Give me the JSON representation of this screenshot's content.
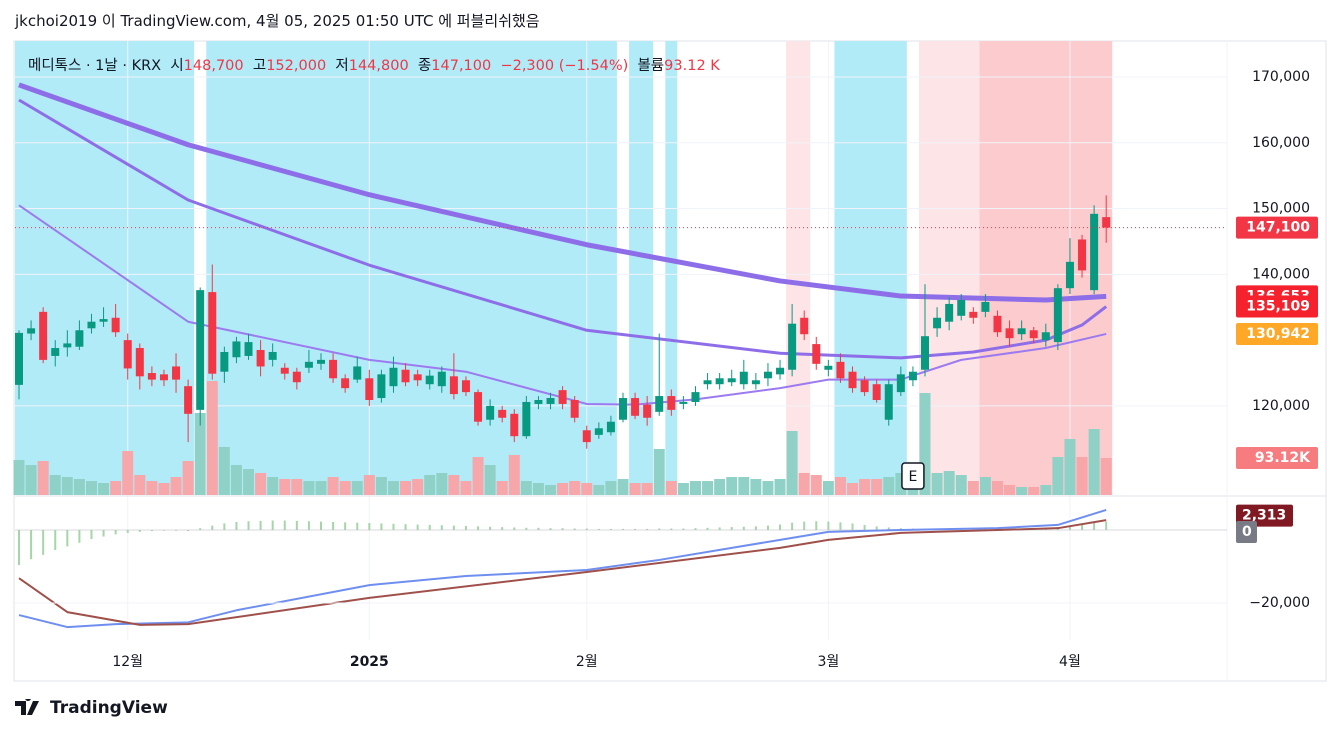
{
  "header": "jkchoi2019 이 TradingView.com, 4월 05, 2025 01:50 UTC 에 퍼블리쉬했음",
  "footer": "TradingView",
  "legend": {
    "symbol": "메디톡스 · 1날 · KRX",
    "open_label": "시",
    "open": "148,700",
    "high_label": "고",
    "high": "152,000",
    "low_label": "저",
    "low": "144,800",
    "close_label": "종",
    "close": "147,100",
    "change": "−2,300 (−1.54%)",
    "volume_label": "볼륨",
    "volume": "93.12 K"
  },
  "chart_data": {
    "type": "candlestick",
    "categories": [
      null,
      null,
      null,
      null,
      null,
      null,
      null,
      null,
      null,
      "12월",
      null,
      null,
      null,
      null,
      null,
      null,
      null,
      null,
      null,
      null,
      null,
      null,
      null,
      null,
      null,
      null,
      null,
      null,
      null,
      "2025",
      null,
      null,
      null,
      null,
      null,
      null,
      null,
      null,
      null,
      null,
      null,
      null,
      null,
      null,
      null,
      null,
      null,
      "2월",
      null,
      null,
      null,
      null,
      null,
      null,
      null,
      null,
      null,
      null,
      null,
      null,
      null,
      null,
      null,
      null,
      null,
      null,
      null,
      "3월",
      null,
      null,
      null,
      null,
      null,
      null,
      null,
      null,
      null,
      null,
      null,
      null,
      null,
      null,
      null,
      null,
      null,
      null,
      null,
      "4월",
      null,
      null,
      null
    ],
    "open": [
      123200,
      131000,
      134300,
      127600,
      128900,
      129000,
      131800,
      132800,
      133400,
      130000,
      128800,
      125000,
      124800,
      126000,
      123000,
      119400,
      137300,
      125200,
      127400,
      127600,
      128500,
      127000,
      125800,
      125200,
      125800,
      126400,
      127000,
      124200,
      124000,
      124200,
      121200,
      123000,
      125500,
      124800,
      123300,
      123000,
      124500,
      123900,
      122100,
      117900,
      119400,
      118800,
      115400,
      120300,
      120300,
      122400,
      120900,
      116300,
      115600,
      116000,
      117900,
      121200,
      120200,
      119100,
      121500,
      120300,
      120600,
      123300,
      123300,
      123600,
      123300,
      123300,
      124200,
      124800,
      125500,
      133400,
      129400,
      125500,
      126700,
      125200,
      123900,
      123300,
      117900,
      122100,
      123900,
      125500,
      131800,
      132800,
      133700,
      134300,
      134300,
      133700,
      131800,
      130900,
      131500,
      130000,
      129700,
      137900,
      145300,
      137600,
      148700
    ],
    "high": [
      131500,
      133000,
      135000,
      130000,
      131500,
      133000,
      134000,
      135000,
      135500,
      131000,
      129500,
      126000,
      125500,
      128000,
      124000,
      138000,
      141500,
      129000,
      130500,
      131000,
      130000,
      129500,
      126500,
      125800,
      128500,
      128000,
      128000,
      124800,
      127500,
      125500,
      125500,
      127500,
      126500,
      125500,
      125500,
      126000,
      128000,
      124500,
      122500,
      121000,
      120000,
      119500,
      121500,
      121500,
      122000,
      123000,
      121500,
      117000,
      117500,
      118500,
      122000,
      122000,
      121500,
      131000,
      122500,
      121500,
      123000,
      125000,
      125000,
      125500,
      127000,
      125000,
      126500,
      127000,
      135500,
      134500,
      130500,
      127000,
      128000,
      126000,
      124500,
      124000,
      124000,
      126000,
      126000,
      138500,
      135000,
      136500,
      137000,
      135000,
      137000,
      134500,
      133000,
      133000,
      132000,
      132500,
      138500,
      145500,
      146000,
      150500,
      152000
    ],
    "low": [
      121000,
      130000,
      126500,
      126000,
      127500,
      128500,
      131000,
      132000,
      130500,
      124000,
      122500,
      123000,
      123000,
      122000,
      114500,
      117000,
      124000,
      123500,
      126500,
      127000,
      124500,
      126000,
      124000,
      122500,
      125000,
      125500,
      123500,
      122000,
      123500,
      120000,
      120500,
      122000,
      123000,
      123000,
      122500,
      122000,
      121000,
      121500,
      117000,
      117000,
      117500,
      114500,
      115000,
      119500,
      119500,
      119500,
      117500,
      113500,
      115000,
      115500,
      117500,
      118000,
      117000,
      118500,
      118500,
      119500,
      120000,
      122500,
      122500,
      123000,
      122500,
      122500,
      123000,
      124000,
      124500,
      130000,
      125500,
      124500,
      123500,
      122000,
      121500,
      120500,
      117000,
      121500,
      123000,
      124500,
      130500,
      131500,
      133000,
      132500,
      133500,
      130500,
      129000,
      130000,
      129500,
      129000,
      128500,
      137000,
      139500,
      137000,
      144800
    ],
    "close": [
      131100,
      131800,
      127000,
      128800,
      129500,
      131500,
      132800,
      133200,
      131200,
      125700,
      124500,
      124000,
      123900,
      124000,
      118800,
      137600,
      124900,
      128200,
      129800,
      129700,
      126000,
      128200,
      124900,
      123600,
      126700,
      127000,
      124200,
      122700,
      126000,
      120900,
      124800,
      125800,
      123600,
      123900,
      124600,
      125200,
      121800,
      122100,
      117600,
      120000,
      118200,
      115400,
      120600,
      120900,
      121200,
      120300,
      118200,
      114500,
      116600,
      117600,
      121200,
      118500,
      118200,
      121500,
      119400,
      120600,
      122100,
      123900,
      124200,
      124200,
      125200,
      123900,
      125200,
      125800,
      132500,
      130900,
      126400,
      126100,
      124200,
      122700,
      122100,
      120900,
      123300,
      124800,
      125200,
      130600,
      133400,
      135500,
      136100,
      133400,
      135800,
      131200,
      130300,
      131800,
      130300,
      131200,
      137900,
      141900,
      140600,
      149200,
      147100
    ],
    "volume": [
      88100,
      75500,
      85600,
      50300,
      45300,
      40300,
      35200,
      30200,
      35200,
      110700,
      50300,
      35200,
      30200,
      45300,
      85600,
      206400,
      286900,
      120800,
      75500,
      65400,
      55400,
      45300,
      40300,
      40300,
      35200,
      35200,
      45300,
      35200,
      35200,
      50300,
      45300,
      35200,
      35200,
      40300,
      50300,
      55400,
      50300,
      35200,
      95600,
      75500,
      35200,
      100700,
      35200,
      30200,
      25200,
      30200,
      35200,
      30200,
      25200,
      35200,
      40300,
      30200,
      30200,
      115800,
      35200,
      30200,
      35200,
      35200,
      40300,
      45300,
      45300,
      40300,
      35200,
      40300,
      161100,
      55400,
      50300,
      35200,
      45300,
      30200,
      40300,
      40300,
      45300,
      55400,
      65400,
      256700,
      55400,
      60400,
      50300,
      35200,
      45300,
      35200,
      25200,
      20100,
      20100,
      25200,
      95600,
      141000,
      95600,
      166100,
      93120
    ],
    "up_color": "#089981",
    "down_color": "#f23645",
    "up_volume_color": "#8fd1c6",
    "down_volume_color": "#f7a6a9",
    "ylim": [
      106460,
      175470
    ],
    "volume_lim": [
      0,
      1142700
    ],
    "yticks": [
      {
        "value": 120000,
        "label": "120,000"
      },
      {
        "value": 140000,
        "label": "140,000"
      },
      {
        "value": 150000,
        "label": "150,000"
      },
      {
        "value": 160000,
        "label": "160,000"
      },
      {
        "value": 170000,
        "label": "170,000"
      }
    ],
    "grid": true,
    "last_price_line": 147100,
    "price_labels": [
      {
        "value": 147100,
        "label": "147,100",
        "color": "#f23645"
      },
      {
        "value": 136653,
        "label": "136,653",
        "color": "#f5222d"
      },
      {
        "value": 135109,
        "label": "135,109",
        "color": "#f5222d"
      },
      {
        "value": 130942,
        "label": "130,942",
        "color": "#ffa726"
      }
    ],
    "volume_label": {
      "value": 93120,
      "label": "93.12K",
      "color": "#f77c80"
    },
    "bands": [
      {
        "from": 0,
        "to": 14,
        "color": "#b2ebf8"
      },
      {
        "from": 16,
        "to": 49,
        "color": "#b2ebf8"
      },
      {
        "from": 51,
        "to": 52,
        "color": "#b2ebf8"
      },
      {
        "from": 54,
        "to": 54,
        "color": "#b2ebf8"
      },
      {
        "from": 64,
        "to": 65,
        "color": "#fde4e6"
      },
      {
        "from": 68,
        "to": 73,
        "color": "#b2ebf8"
      },
      {
        "from": 75,
        "to": 79,
        "color": "#fde4e6"
      },
      {
        "from": 80,
        "to": 90,
        "color": "#fccbcd"
      }
    ],
    "earnings": {
      "label": "E",
      "at": 74
    },
    "moving_averages": [
      {
        "color": "#8e6ee8",
        "width": 5,
        "x": [
          0,
          14,
          29,
          47,
          63,
          73,
          85,
          90
        ],
        "values": [
          168800,
          159700,
          152100,
          144500,
          139000,
          136700,
          136100,
          136653
        ]
      },
      {
        "color": "#8e6ee8",
        "width": 3,
        "x": [
          0,
          14,
          29,
          47,
          63,
          73,
          79,
          85,
          88,
          90
        ],
        "values": [
          166500,
          151300,
          141400,
          131500,
          128000,
          127300,
          128200,
          130000,
          132300,
          135109
        ]
      },
      {
        "color": "#9c7af0",
        "width": 2,
        "x": [
          0,
          14,
          29,
          37,
          47,
          51,
          56,
          63,
          67,
          73,
          78,
          85,
          90
        ],
        "values": [
          150500,
          132800,
          127000,
          125200,
          120300,
          120200,
          121000,
          122700,
          124000,
          124000,
          127000,
          128800,
          130942
        ]
      }
    ],
    "macd": {
      "ylim": [
        -30140,
        8770
      ],
      "yticks": [
        {
          "value": -20000,
          "label": "−20,000"
        }
      ],
      "histogram": [
        -9600,
        -8000,
        -6800,
        -5500,
        -4500,
        -3500,
        -2500,
        -1800,
        -1200,
        -800,
        -500,
        -300,
        -200,
        -200,
        -300,
        500,
        1200,
        1800,
        2200,
        2400,
        2500,
        2600,
        2600,
        2500,
        2400,
        2300,
        2200,
        2100,
        2000,
        1900,
        1800,
        1700,
        1600,
        1500,
        1400,
        1300,
        1200,
        1100,
        1000,
        900,
        800,
        700,
        600,
        600,
        500,
        500,
        400,
        400,
        300,
        300,
        300,
        300,
        300,
        400,
        400,
        400,
        500,
        600,
        700,
        800,
        900,
        1000,
        1200,
        1500,
        2000,
        2300,
        2400,
        2300,
        2100,
        1800,
        1400,
        1000,
        700,
        500,
        400,
        300,
        300,
        300,
        300,
        300,
        300,
        300,
        300,
        300,
        300,
        300,
        800,
        1200,
        1500,
        2000,
        2313
      ],
      "histogram_color": "#a5d6a7",
      "series": [
        {
          "color": "#6f8ff0",
          "x": [
            0,
            4,
            8,
            14,
            18,
            29,
            37,
            47,
            53,
            63,
            67,
            73,
            81,
            86,
            90
          ],
          "values": [
            -23300,
            -26600,
            -25800,
            -25300,
            -22000,
            -15100,
            -12600,
            -10960,
            -8200,
            -2700,
            -500,
            0,
            500,
            1400,
            5500
          ]
        },
        {
          "color": "#a0504a",
          "x": [
            0,
            4,
            10,
            14,
            29,
            47,
            63,
            67,
            73,
            81,
            86,
            90
          ],
          "values": [
            -13200,
            -22500,
            -26000,
            -25800,
            -18600,
            -11500,
            -4900,
            -2700,
            -800,
            0,
            500,
            2700
          ]
        }
      ],
      "labels": [
        {
          "value": 2313,
          "label": "2,313",
          "color": "#801922"
        },
        {
          "value": 0,
          "label": "0",
          "color": "#787b86"
        }
      ]
    }
  }
}
